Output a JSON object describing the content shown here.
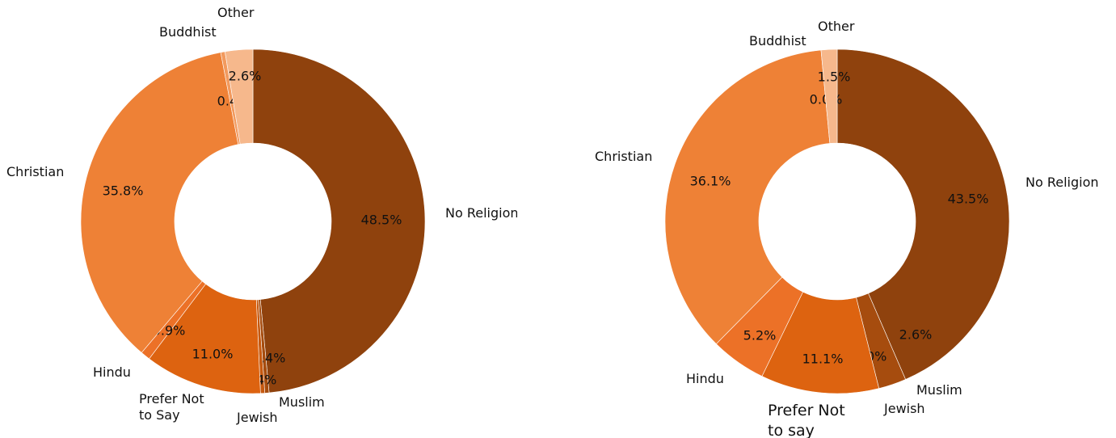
{
  "chart_data": [
    {
      "type": "pie",
      "donut": true,
      "start_angle_deg": 90,
      "direction": "clockwise",
      "slices": [
        {
          "name": "No Religion",
          "label": "No Religion",
          "value": 48.5,
          "pct_label": "48.5%",
          "color": "#8f420d"
        },
        {
          "name": "Muslim",
          "label": "Muslim",
          "value": 0.4,
          "pct_label": "0.4%",
          "color": "#a64c0e"
        },
        {
          "name": "Jewish",
          "label": "Jewish",
          "value": 0.4,
          "pct_label": "0.4%",
          "color": "#c65910"
        },
        {
          "name": "Prefer Not to Say",
          "label": [
            "Prefer Not",
            "to Say"
          ],
          "value": 11.0,
          "pct_label": "11.0%",
          "color": "#dd6310"
        },
        {
          "name": "Hindu",
          "label": "Hindu",
          "value": 0.9,
          "pct_label": "0.9%",
          "color": "#ec7127"
        },
        {
          "name": "Christian",
          "label": "Christian",
          "value": 35.8,
          "pct_label": "35.8%",
          "color": "#ee8136"
        },
        {
          "name": "Buddhist",
          "label": "Buddhist",
          "value": 0.4,
          "pct_label": "0.4%",
          "color": "#f29a5e"
        },
        {
          "name": "Other",
          "label": "Other",
          "value": 2.6,
          "pct_label": "2.6%",
          "color": "#f6b88c"
        }
      ]
    },
    {
      "type": "pie",
      "donut": true,
      "start_angle_deg": 90,
      "direction": "clockwise",
      "slices": [
        {
          "name": "No Religion",
          "label": "No Religion",
          "value": 43.5,
          "pct_label": "43.5%",
          "color": "#8f420d"
        },
        {
          "name": "Muslim",
          "label": "Muslim",
          "value": 2.6,
          "pct_label": "2.6%",
          "color": "#a64c0e"
        },
        {
          "name": "Jewish",
          "label": "Jewish",
          "value": 0.0,
          "pct_label": "0.0%",
          "color": "#c65910"
        },
        {
          "name": "Prefer Not to say",
          "label": [
            "Prefer Not",
            "to say"
          ],
          "value": 11.1,
          "pct_label": "11.1%",
          "color": "#dd6310"
        },
        {
          "name": "Hindu",
          "label": "Hindu",
          "value": 5.2,
          "pct_label": "5.2%",
          "color": "#ec7127"
        },
        {
          "name": "Christian",
          "label": "Christian",
          "value": 36.1,
          "pct_label": "36.1%",
          "color": "#ee8136"
        },
        {
          "name": "Buddhist",
          "label": "Buddhist",
          "value": 0.0,
          "pct_label": "0.0%",
          "color": "#f29a5e"
        },
        {
          "name": "Other",
          "label": "Other",
          "value": 1.5,
          "pct_label": "1.5%",
          "color": "#f6b88c"
        }
      ]
    }
  ]
}
